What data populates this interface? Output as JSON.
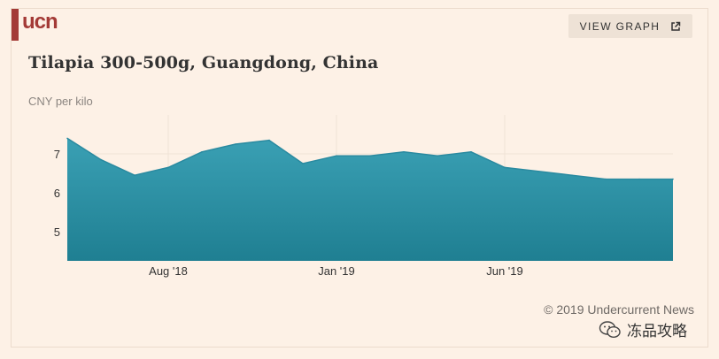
{
  "brand": {
    "logo_text": "ucn"
  },
  "header": {
    "view_graph_label": "VIEW GRAPH",
    "view_graph_icon": "external-link-icon"
  },
  "chart_data": {
    "type": "area",
    "title": "Tilapia 300-500g, Guangdong, China",
    "ylabel": "CNY per kilo",
    "xlabel": "",
    "x": [
      "2018-05",
      "2018-06",
      "2018-07",
      "2018-08",
      "2018-09",
      "2018-10",
      "2018-11",
      "2018-12",
      "2019-01",
      "2019-02",
      "2019-03",
      "2019-04",
      "2019-05",
      "2019-06",
      "2019-07",
      "2019-08",
      "2019-09",
      "2019-10",
      "2019-11"
    ],
    "values": [
      7.4,
      6.85,
      6.45,
      6.65,
      7.05,
      7.25,
      7.35,
      6.75,
      6.95,
      6.95,
      7.05,
      6.95,
      7.05,
      6.65,
      6.55,
      6.45,
      6.35,
      6.35,
      6.35
    ],
    "x_ticks": [
      {
        "label": "Aug '18",
        "x": "2018-08"
      },
      {
        "label": "Jan '19",
        "x": "2019-01"
      },
      {
        "label": "Jun '19",
        "x": "2019-06"
      }
    ],
    "y_ticks": [
      5,
      6,
      7
    ],
    "ylim": [
      4.25,
      8.0
    ],
    "grid": true,
    "fill_color": "#2a8ea3"
  },
  "footer": {
    "credit": "© 2019 Undercurrent News",
    "watermark_label": "冻品攻略",
    "watermark_icon": "wechat-icon"
  }
}
